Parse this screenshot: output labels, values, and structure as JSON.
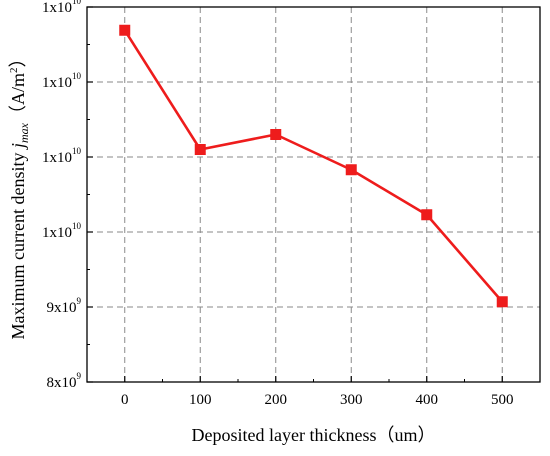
{
  "chart_data": {
    "type": "line",
    "xlabel": "Deposited layer thickness（um）",
    "ylabel_main": "Maximum current density ",
    "ylabel_symbol": "j",
    "ylabel_subscript": "max",
    "ylabel_unit_open": "（A/m",
    "ylabel_unit_sup": "2",
    "ylabel_unit_close": "）",
    "xlim": [
      -50,
      550
    ],
    "ylim": [
      8000000000,
      13000000000
    ],
    "x_ticks": [
      {
        "value": 0,
        "label": "0"
      },
      {
        "value": 100,
        "label": "100"
      },
      {
        "value": 200,
        "label": "200"
      },
      {
        "value": 300,
        "label": "300"
      },
      {
        "value": 400,
        "label": "400"
      },
      {
        "value": 500,
        "label": "500"
      }
    ],
    "y_ticks": [
      {
        "value": 8000000000,
        "mant": "8x10",
        "exp": "9"
      },
      {
        "value": 9000000000,
        "mant": "9x10",
        "exp": "9"
      },
      {
        "value": 10000000000,
        "mant": "1x10",
        "exp": "10"
      },
      {
        "value": 11000000000,
        "mant": "1x10",
        "exp": "10"
      },
      {
        "value": 12000000000,
        "mant": "1x10",
        "exp": "10"
      },
      {
        "value": 13000000000,
        "mant": "1x10",
        "exp": "10"
      }
    ],
    "grid": true,
    "series": [
      {
        "color": "#ee1c1c",
        "marker": "square",
        "points": [
          {
            "x": 0,
            "y": 12690000000
          },
          {
            "x": 100,
            "y": 11100000000
          },
          {
            "x": 200,
            "y": 11300000000
          },
          {
            "x": 300,
            "y": 10830000000
          },
          {
            "x": 400,
            "y": 10230000000
          },
          {
            "x": 500,
            "y": 9070000000
          }
        ]
      }
    ]
  }
}
